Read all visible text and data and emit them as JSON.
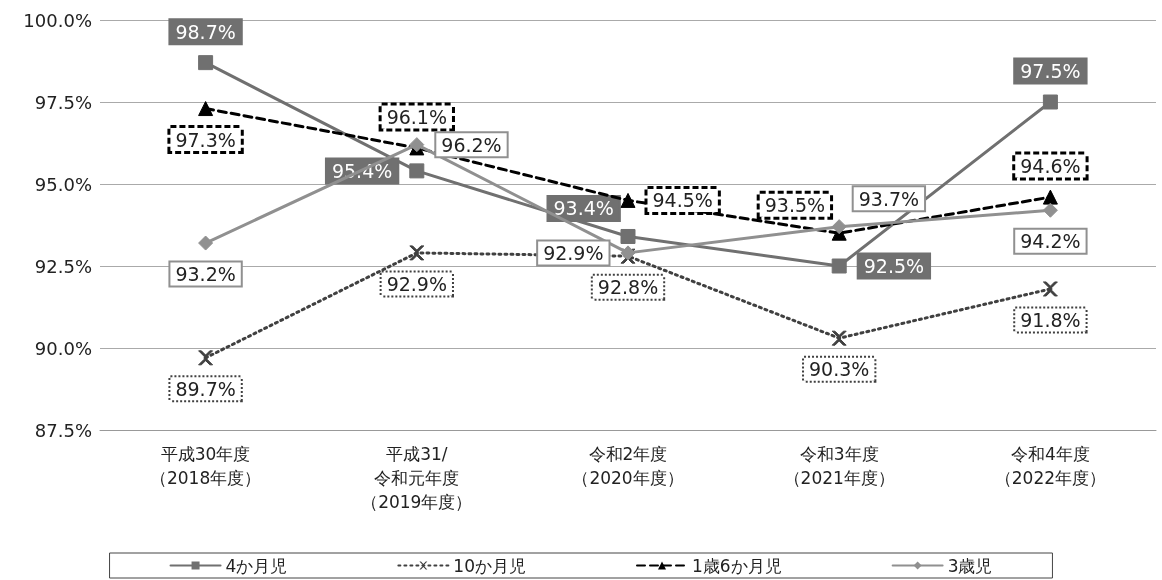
{
  "chart_data": {
    "type": "line",
    "categories": [
      "平成30年度（2018年度）",
      "平成31/令和元年度（2019年度）",
      "令和2年度（2020年度）",
      "令和3年度（2021年度）",
      "令和4年度（2022年度）"
    ],
    "series": [
      {
        "name": "4か月児",
        "color": "#707070",
        "marker": "square",
        "line_style": "solid",
        "values": [
          98.7,
          95.4,
          93.4,
          92.5,
          97.5
        ],
        "value_labels": [
          "98.7%",
          "95.4%",
          "93.4%",
          "92.5%",
          "97.5%"
        ]
      },
      {
        "name": "10か月児",
        "color": "#404040",
        "marker": "cross",
        "line_style": "dotted",
        "values": [
          89.7,
          92.9,
          92.8,
          90.3,
          91.8
        ],
        "value_labels": [
          "89.7%",
          "92.9%",
          "92.8%",
          "90.3%",
          "91.8%"
        ]
      },
      {
        "name": "1歳6か月児",
        "color": "#000000",
        "marker": "triangle",
        "line_style": "dashed",
        "values": [
          97.3,
          96.1,
          94.5,
          93.5,
          94.6
        ],
        "value_labels": [
          "97.3%",
          "96.1%",
          "94.5%",
          "93.5%",
          "94.6%"
        ]
      },
      {
        "name": "3歳児",
        "color": "#909090",
        "marker": "diamond",
        "line_style": "solid",
        "values": [
          93.2,
          96.2,
          92.9,
          93.7,
          94.2
        ],
        "value_labels": [
          "93.2%",
          "96.2%",
          "92.9%",
          "93.7%",
          "94.2%"
        ]
      }
    ],
    "ylim": [
      87.5,
      100
    ],
    "yticks": [
      {
        "value": 87.5,
        "label": "87.5%"
      },
      {
        "value": 90,
        "label": "90.0%"
      },
      {
        "value": 92.5,
        "label": "92.5%"
      },
      {
        "value": 95,
        "label": "95.0%"
      },
      {
        "value": 97.5,
        "label": "97.5%"
      },
      {
        "value": 100,
        "label": "100.0%"
      }
    ],
    "grid": "y",
    "legend": "bottom"
  }
}
